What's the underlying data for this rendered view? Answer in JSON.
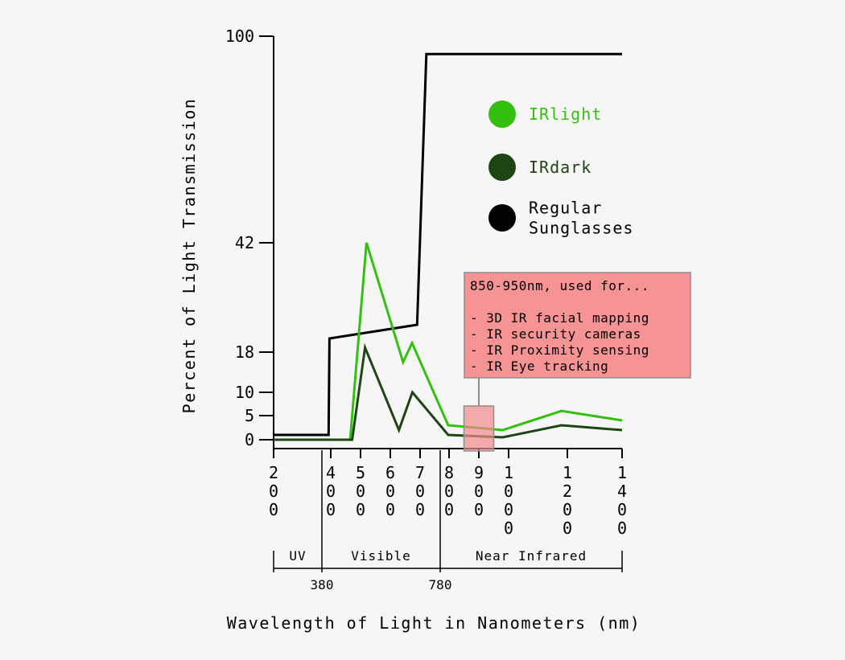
{
  "chart_data": {
    "type": "line",
    "title": "",
    "xlabel": "Wavelength of Light in Nanometers (nm)",
    "ylabel": "Percent of Light Transmission",
    "y_ticks": [
      0,
      5,
      10,
      18,
      42,
      100
    ],
    "y_tick_labels": [
      "0",
      "5",
      "10",
      "18",
      "42",
      "100"
    ],
    "x_ticks": [
      200,
      400,
      500,
      600,
      700,
      800,
      900,
      1000,
      1200,
      1400
    ],
    "x_tick_labels": [
      "200",
      "400",
      "500",
      "600",
      "700",
      "800",
      "900",
      "1000",
      "1200",
      "1400"
    ],
    "bands": [
      {
        "label": "UV",
        "from": 200,
        "to": 380
      },
      {
        "label": "Visible",
        "from": 380,
        "to": 780
      },
      {
        "label": "Near Infrared",
        "from": 780,
        "to": 1400
      }
    ],
    "band_boundary_labels": [
      "380",
      "780"
    ],
    "series": [
      {
        "name": "Regular Sunglasses",
        "color": "#000000",
        "points": [
          [
            200,
            1
          ],
          [
            395,
            1
          ],
          [
            397,
            21
          ],
          [
            690,
            24
          ],
          [
            725,
            95
          ],
          [
            1400,
            95
          ]
        ]
      },
      {
        "name": "IRlight",
        "color": "#33c010",
        "points": [
          [
            200,
            0
          ],
          [
            465,
            0
          ],
          [
            520,
            42
          ],
          [
            643,
            16
          ],
          [
            673,
            20
          ],
          [
            798,
            3
          ],
          [
            980,
            2
          ],
          [
            1180,
            6
          ],
          [
            1400,
            4
          ]
        ]
      },
      {
        "name": "IRdark",
        "color": "#1e4514",
        "points": [
          [
            200,
            0
          ],
          [
            472,
            0
          ],
          [
            515,
            19
          ],
          [
            629,
            2
          ],
          [
            674,
            10
          ],
          [
            798,
            1
          ],
          [
            980,
            0.5
          ],
          [
            1180,
            3
          ],
          [
            1400,
            2
          ]
        ]
      }
    ],
    "legend_position": "top-right",
    "legend": [
      {
        "label": "IRlight",
        "color": "#33c010"
      },
      {
        "label": "IRdark",
        "color": "#1e4514"
      },
      {
        "label": "Regular\nSunglasses",
        "color": "#000000"
      }
    ],
    "highlight": {
      "from": 850,
      "to": 950,
      "color": "#f4898a"
    },
    "annotation": {
      "lines": [
        "850-950nm, used for...",
        "",
        "- 3D IR facial mapping",
        "- IR security cameras",
        "- IR Proximity sensing",
        "- IR Eye tracking"
      ],
      "color": "#f69394"
    },
    "grid": false
  }
}
